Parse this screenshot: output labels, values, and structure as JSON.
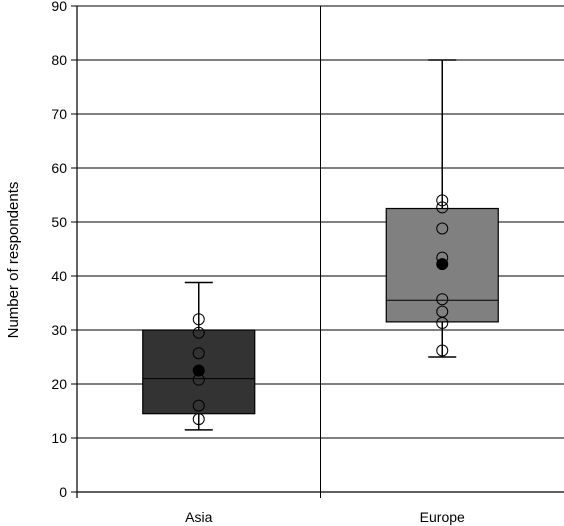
{
  "chart_data": {
    "type": "box",
    "ylabel": "Number of respondents",
    "ylim": [
      0,
      90
    ],
    "yticks": [
      0,
      10,
      20,
      30,
      40,
      50,
      60,
      70,
      80,
      90
    ],
    "grid": true,
    "categories": [
      "Asia",
      "Europe"
    ],
    "boxes": [
      {
        "category": "Asia",
        "color": "#333333",
        "whisker_low": 11.5,
        "q1": 14.5,
        "median": 21,
        "q3": 30,
        "whisker_high": 38.8,
        "mean": 22.5,
        "points": [
          13.5,
          16,
          20.8,
          25.7,
          29.5,
          32
        ]
      },
      {
        "category": "Europe",
        "color": "#808080",
        "whisker_low": 25,
        "q1": 31.5,
        "median": 35.5,
        "q3": 52.5,
        "whisker_high": 80,
        "mean": 42.2,
        "points": [
          26.2,
          31.3,
          33.4,
          35.7,
          43.4,
          48.8,
          52.7,
          54
        ]
      }
    ]
  }
}
